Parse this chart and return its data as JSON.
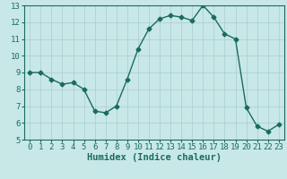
{
  "x": [
    0,
    1,
    2,
    3,
    4,
    5,
    6,
    7,
    8,
    9,
    10,
    11,
    12,
    13,
    14,
    15,
    16,
    17,
    18,
    19,
    20,
    21,
    22,
    23
  ],
  "y": [
    9.0,
    9.0,
    8.6,
    8.3,
    8.4,
    8.0,
    6.7,
    6.6,
    7.0,
    8.6,
    10.4,
    11.6,
    12.2,
    12.4,
    12.3,
    12.1,
    13.0,
    12.3,
    11.3,
    11.0,
    6.9,
    5.8,
    5.5,
    5.9
  ],
  "line_color": "#1a6b5e",
  "marker": "D",
  "marker_size": 2.5,
  "xlim": [
    -0.5,
    23.5
  ],
  "ylim": [
    5,
    13
  ],
  "yticks": [
    5,
    6,
    7,
    8,
    9,
    10,
    11,
    12,
    13
  ],
  "xticks": [
    0,
    1,
    2,
    3,
    4,
    5,
    6,
    7,
    8,
    9,
    10,
    11,
    12,
    13,
    14,
    15,
    16,
    17,
    18,
    19,
    20,
    21,
    22,
    23
  ],
  "xlabel": "Humidex (Indice chaleur)",
  "bg_color": "#c8e8e8",
  "grid_color": "#aacccc",
  "tick_fontsize": 6.5,
  "label_fontsize": 7.5
}
